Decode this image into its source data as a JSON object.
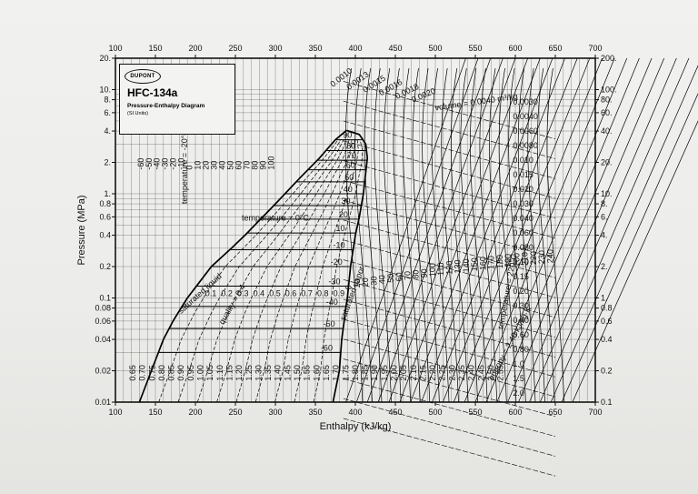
{
  "chart_data": {
    "type": "line",
    "title": "Pressure-Enthalpy Diagram",
    "refrigerant": "HFC-134a",
    "units_note": "(SI Units)",
    "brand": "DUPONT",
    "xlabel": "Enthalpy (kJ/kg)",
    "ylabel": "Pressure (MPa)",
    "xlim": [
      100,
      700
    ],
    "ylim": [
      0.01,
      20
    ],
    "y_scale": "log",
    "grid": true,
    "x_ticks": [
      "100",
      "150",
      "200",
      "250",
      "300",
      "350",
      "400",
      "450",
      "500",
      "550",
      "600",
      "650",
      "700"
    ],
    "y_ticks_left": [
      {
        "v": 20,
        "label": "20."
      },
      {
        "v": 10,
        "label": "10."
      },
      {
        "v": 8,
        "label": "8."
      },
      {
        "v": 6,
        "label": "6."
      },
      {
        "v": 4,
        "label": "4."
      },
      {
        "v": 2,
        "label": "2."
      },
      {
        "v": 1,
        "label": "1."
      },
      {
        "v": 0.8,
        "label": "0.8"
      },
      {
        "v": 0.6,
        "label": "0.6"
      },
      {
        "v": 0.4,
        "label": "0.4"
      },
      {
        "v": 0.2,
        "label": "0.2"
      },
      {
        "v": 0.1,
        "label": "0.1"
      },
      {
        "v": 0.08,
        "label": "0.08"
      },
      {
        "v": 0.06,
        "label": "0.06"
      },
      {
        "v": 0.04,
        "label": "0.04"
      },
      {
        "v": 0.02,
        "label": "0.02"
      },
      {
        "v": 0.01,
        "label": "0.01"
      }
    ],
    "y_ticks_right": [
      {
        "v": 20,
        "label": "200."
      },
      {
        "v": 10,
        "label": "100."
      },
      {
        "v": 8,
        "label": "80."
      },
      {
        "v": 6,
        "label": "60."
      },
      {
        "v": 4,
        "label": "40."
      },
      {
        "v": 2,
        "label": "20."
      },
      {
        "v": 1,
        "label": "10."
      },
      {
        "v": 0.8,
        "label": "8."
      },
      {
        "v": 0.6,
        "label": "6."
      },
      {
        "v": 0.4,
        "label": "4."
      },
      {
        "v": 0.2,
        "label": "2."
      },
      {
        "v": 0.1,
        "label": "1."
      },
      {
        "v": 0.08,
        "label": "0.8"
      },
      {
        "v": 0.06,
        "label": "0.6"
      },
      {
        "v": 0.04,
        "label": "0.4"
      },
      {
        "v": 0.02,
        "label": "0.2"
      },
      {
        "v": 0.01,
        "label": "0.1"
      }
    ],
    "series": [
      {
        "name": "saturated liquid",
        "points": [
          [
            130,
            0.01
          ],
          [
            145,
            0.02
          ],
          [
            160,
            0.04
          ],
          [
            172,
            0.06
          ],
          [
            182,
            0.08
          ],
          [
            190,
            0.1
          ],
          [
            220,
            0.2
          ],
          [
            245,
            0.3
          ],
          [
            262,
            0.4
          ],
          [
            300,
            0.8
          ],
          [
            330,
            1.4
          ],
          [
            355,
            2.2
          ],
          [
            375,
            3.3
          ],
          [
            389,
            4.06
          ]
        ]
      },
      {
        "name": "saturated vapor",
        "points": [
          [
            372,
            0.01
          ],
          [
            380,
            0.02
          ],
          [
            383,
            0.04
          ],
          [
            386,
            0.06
          ],
          [
            388,
            0.08
          ],
          [
            390,
            0.1
          ],
          [
            394,
            0.2
          ],
          [
            400,
            0.4
          ],
          [
            405,
            0.6
          ],
          [
            410,
            1.0
          ],
          [
            413,
            1.6
          ],
          [
            415,
            2.2
          ],
          [
            413,
            3.0
          ],
          [
            405,
            3.7
          ],
          [
            389,
            4.06
          ]
        ]
      }
    ],
    "annotations": {
      "temperature_label": "temperature = 0°C",
      "temperature_label_vapor": "temperature = 220°C",
      "temperature_label_liquid": "temperature = -20°C",
      "volume_label": "volume = 0.0040 m³/kg",
      "saturated_liquid_label": "saturated liquid",
      "saturated_vapor_label": "saturated vapor",
      "quality_label": "quality = 0.4",
      "entropy_label": "entropy = 2.40 kJ/kg·K",
      "liquid_isotherms": [
        "90",
        "80",
        "70",
        "60",
        "50",
        "40",
        "30",
        "20",
        "10",
        "-10",
        "-20",
        "-30",
        "-40",
        "-50",
        "-60"
      ],
      "volume_values": [
        "0.0010",
        "0.0013",
        "0.0015",
        "0.0016",
        "0.0018",
        "0.0020",
        "0.0030",
        "0.0040",
        "0.0060",
        "0.0080",
        "0.010",
        "0.015",
        "0.020",
        "0.030",
        "0.040",
        "0.060",
        "0.080",
        "0.10",
        "0.15",
        "0.20",
        "0.30",
        "0.40",
        "0.60",
        "0.80",
        "1.0",
        "1.5",
        "2.0"
      ],
      "entropy_values": [
        "0.65",
        "0.70",
        "0.75",
        "0.80",
        "0.85",
        "0.90",
        "0.95",
        "1.00",
        "1.05",
        "1.10",
        "1.15",
        "1.20",
        "1.25",
        "1.30",
        "1.35",
        "1.40",
        "1.45",
        "1.50",
        "1.55",
        "1.60",
        "1.65",
        "1.70",
        "1.75",
        "1.80",
        "1.85",
        "1.90",
        "1.95",
        "2.00",
        "2.05",
        "2.10",
        "2.15",
        "2.20",
        "2.25",
        "2.30",
        "2.35",
        "2.40",
        "2.45",
        "2.50",
        "2.55"
      ],
      "vapor_temps": [
        "0",
        "10",
        "20",
        "30",
        "40",
        "50",
        "60",
        "70",
        "80",
        "90",
        "100",
        "110",
        "120",
        "130",
        "140",
        "150",
        "160",
        "170",
        "180",
        "190",
        "200",
        "210",
        "220",
        "230",
        "240"
      ],
      "top_temps": [
        "-60",
        "-50",
        "-40",
        "-30",
        "-20",
        "-10",
        "0",
        "10",
        "20",
        "30",
        "40",
        "50",
        "60",
        "70",
        "80",
        "90",
        "100"
      ],
      "quality_values": [
        "0.1",
        "0.2",
        "0.3",
        "0.4",
        "0.5",
        "0.6",
        "0.7",
        "0.8",
        "0.9"
      ]
    }
  }
}
